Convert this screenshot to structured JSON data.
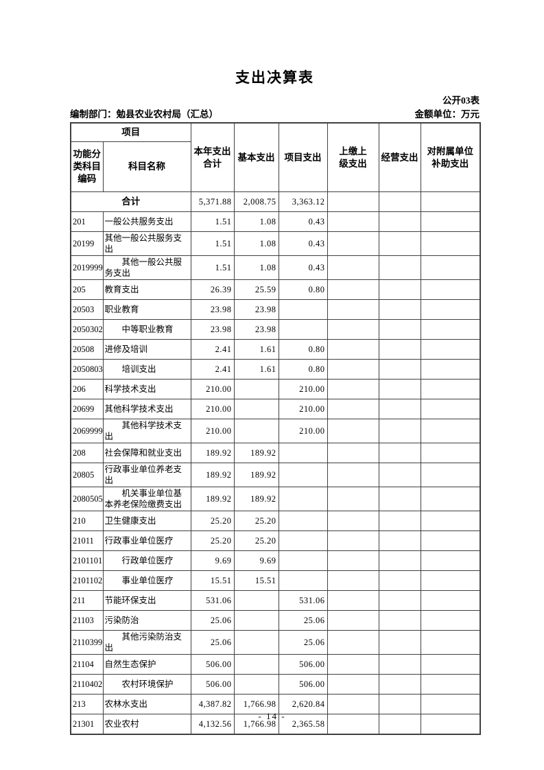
{
  "page": {
    "title": "支出决算表",
    "public_table_label": "公开03表",
    "prepared_by": "编制部门：勉县农业农村局（汇总）",
    "amount_unit": "金额单位：万元",
    "page_number": "- 14 -"
  },
  "table": {
    "header": {
      "project": "项目",
      "code": "功能分\n类科目\n编码",
      "subject_name": "科目名称",
      "total_expenditure": "本年支出\n合计",
      "basic_expenditure": "基本支出",
      "project_expenditure": "项目支出",
      "upper_level_expenditure": "上缴上\n级支出",
      "operating_expenditure": "经营支出",
      "subsidy_expenditure": "对附属单位\n补助支出"
    },
    "total_row": {
      "label": "合计",
      "values": [
        "5,371.88",
        "2,008.75",
        "3,363.12",
        "",
        "",
        ""
      ]
    },
    "rows": [
      {
        "code": "201",
        "name": "一般公共服务支出",
        "indent": false,
        "values": [
          "1.51",
          "1.08",
          "0.43",
          "",
          "",
          ""
        ]
      },
      {
        "code": "20199",
        "name": "其他一般公共服务支出",
        "indent": false,
        "values": [
          "1.51",
          "1.08",
          "0.43",
          "",
          "",
          ""
        ]
      },
      {
        "code": "2019999",
        "name": "其他一般公共服务支出",
        "indent": true,
        "values": [
          "1.51",
          "1.08",
          "0.43",
          "",
          "",
          ""
        ]
      },
      {
        "code": "205",
        "name": "教育支出",
        "indent": false,
        "values": [
          "26.39",
          "25.59",
          "0.80",
          "",
          "",
          ""
        ]
      },
      {
        "code": "20503",
        "name": "职业教育",
        "indent": false,
        "values": [
          "23.98",
          "23.98",
          "",
          "",
          "",
          ""
        ]
      },
      {
        "code": "2050302",
        "name": "中等职业教育",
        "indent": true,
        "values": [
          "23.98",
          "23.98",
          "",
          "",
          "",
          ""
        ]
      },
      {
        "code": "20508",
        "name": "进修及培训",
        "indent": false,
        "values": [
          "2.41",
          "1.61",
          "0.80",
          "",
          "",
          ""
        ]
      },
      {
        "code": "2050803",
        "name": "培训支出",
        "indent": true,
        "values": [
          "2.41",
          "1.61",
          "0.80",
          "",
          "",
          ""
        ]
      },
      {
        "code": "206",
        "name": "科学技术支出",
        "indent": false,
        "values": [
          "210.00",
          "",
          "210.00",
          "",
          "",
          ""
        ]
      },
      {
        "code": "20699",
        "name": "其他科学技术支出",
        "indent": false,
        "values": [
          "210.00",
          "",
          "210.00",
          "",
          "",
          ""
        ]
      },
      {
        "code": "2069999",
        "name": "其他科学技术支出",
        "indent": true,
        "values": [
          "210.00",
          "",
          "210.00",
          "",
          "",
          ""
        ]
      },
      {
        "code": "208",
        "name": "社会保障和就业支出",
        "indent": false,
        "values": [
          "189.92",
          "189.92",
          "",
          "",
          "",
          ""
        ]
      },
      {
        "code": "20805",
        "name": "行政事业单位养老支出",
        "indent": false,
        "values": [
          "189.92",
          "189.92",
          "",
          "",
          "",
          ""
        ]
      },
      {
        "code": "2080505",
        "name": "机关事业单位基本养老保险缴费支出",
        "indent": true,
        "values": [
          "189.92",
          "189.92",
          "",
          "",
          "",
          ""
        ]
      },
      {
        "code": "210",
        "name": "卫生健康支出",
        "indent": false,
        "values": [
          "25.20",
          "25.20",
          "",
          "",
          "",
          ""
        ]
      },
      {
        "code": "21011",
        "name": "行政事业单位医疗",
        "indent": false,
        "values": [
          "25.20",
          "25.20",
          "",
          "",
          "",
          ""
        ]
      },
      {
        "code": "2101101",
        "name": "行政单位医疗",
        "indent": true,
        "values": [
          "9.69",
          "9.69",
          "",
          "",
          "",
          ""
        ]
      },
      {
        "code": "2101102",
        "name": "事业单位医疗",
        "indent": true,
        "values": [
          "15.51",
          "15.51",
          "",
          "",
          "",
          ""
        ]
      },
      {
        "code": "211",
        "name": "节能环保支出",
        "indent": false,
        "values": [
          "531.06",
          "",
          "531.06",
          "",
          "",
          ""
        ]
      },
      {
        "code": "21103",
        "name": "污染防治",
        "indent": false,
        "values": [
          "25.06",
          "",
          "25.06",
          "",
          "",
          ""
        ]
      },
      {
        "code": "2110399",
        "name": "其他污染防治支出",
        "indent": true,
        "values": [
          "25.06",
          "",
          "25.06",
          "",
          "",
          ""
        ]
      },
      {
        "code": "21104",
        "name": "自然生态保护",
        "indent": false,
        "values": [
          "506.00",
          "",
          "506.00",
          "",
          "",
          ""
        ]
      },
      {
        "code": "2110402",
        "name": "农村环境保护",
        "indent": true,
        "values": [
          "506.00",
          "",
          "506.00",
          "",
          "",
          ""
        ]
      },
      {
        "code": "213",
        "name": "农林水支出",
        "indent": false,
        "values": [
          "4,387.82",
          "1,766.98",
          "2,620.84",
          "",
          "",
          ""
        ]
      },
      {
        "code": "21301",
        "name": "农业农村",
        "indent": false,
        "values": [
          "4,132.56",
          "1,766.98",
          "2,365.58",
          "",
          "",
          ""
        ]
      }
    ]
  }
}
